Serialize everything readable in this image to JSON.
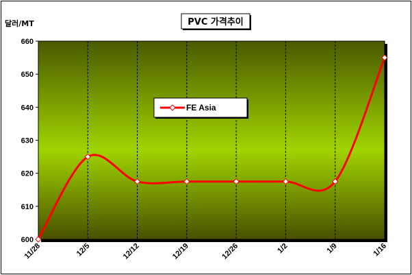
{
  "chart_data": {
    "type": "line",
    "title": "PVC 가격추이",
    "ylabel": "달러/MT",
    "xlabel": "",
    "categories": [
      "11/28",
      "12/5",
      "12/12",
      "12/19",
      "12/26",
      "1/2",
      "1/9",
      "1/16"
    ],
    "series": [
      {
        "name": "FE Asia",
        "values": [
          600,
          625,
          617.5,
          617.5,
          617.5,
          617.5,
          617.5,
          655
        ],
        "color": "#ff0000"
      }
    ],
    "ylim": [
      600,
      660
    ],
    "yticks": [
      600,
      610,
      620,
      630,
      640,
      650,
      660
    ],
    "grid": {
      "vertical": true,
      "horizontal": false
    },
    "legend": "upper-center",
    "colors": {
      "plot_top": "#4a5a00",
      "plot_mid": "#9fd400",
      "plot_bottom": "#4a5000",
      "line": "#ff0000",
      "marker_fill": "#ffffff"
    }
  }
}
